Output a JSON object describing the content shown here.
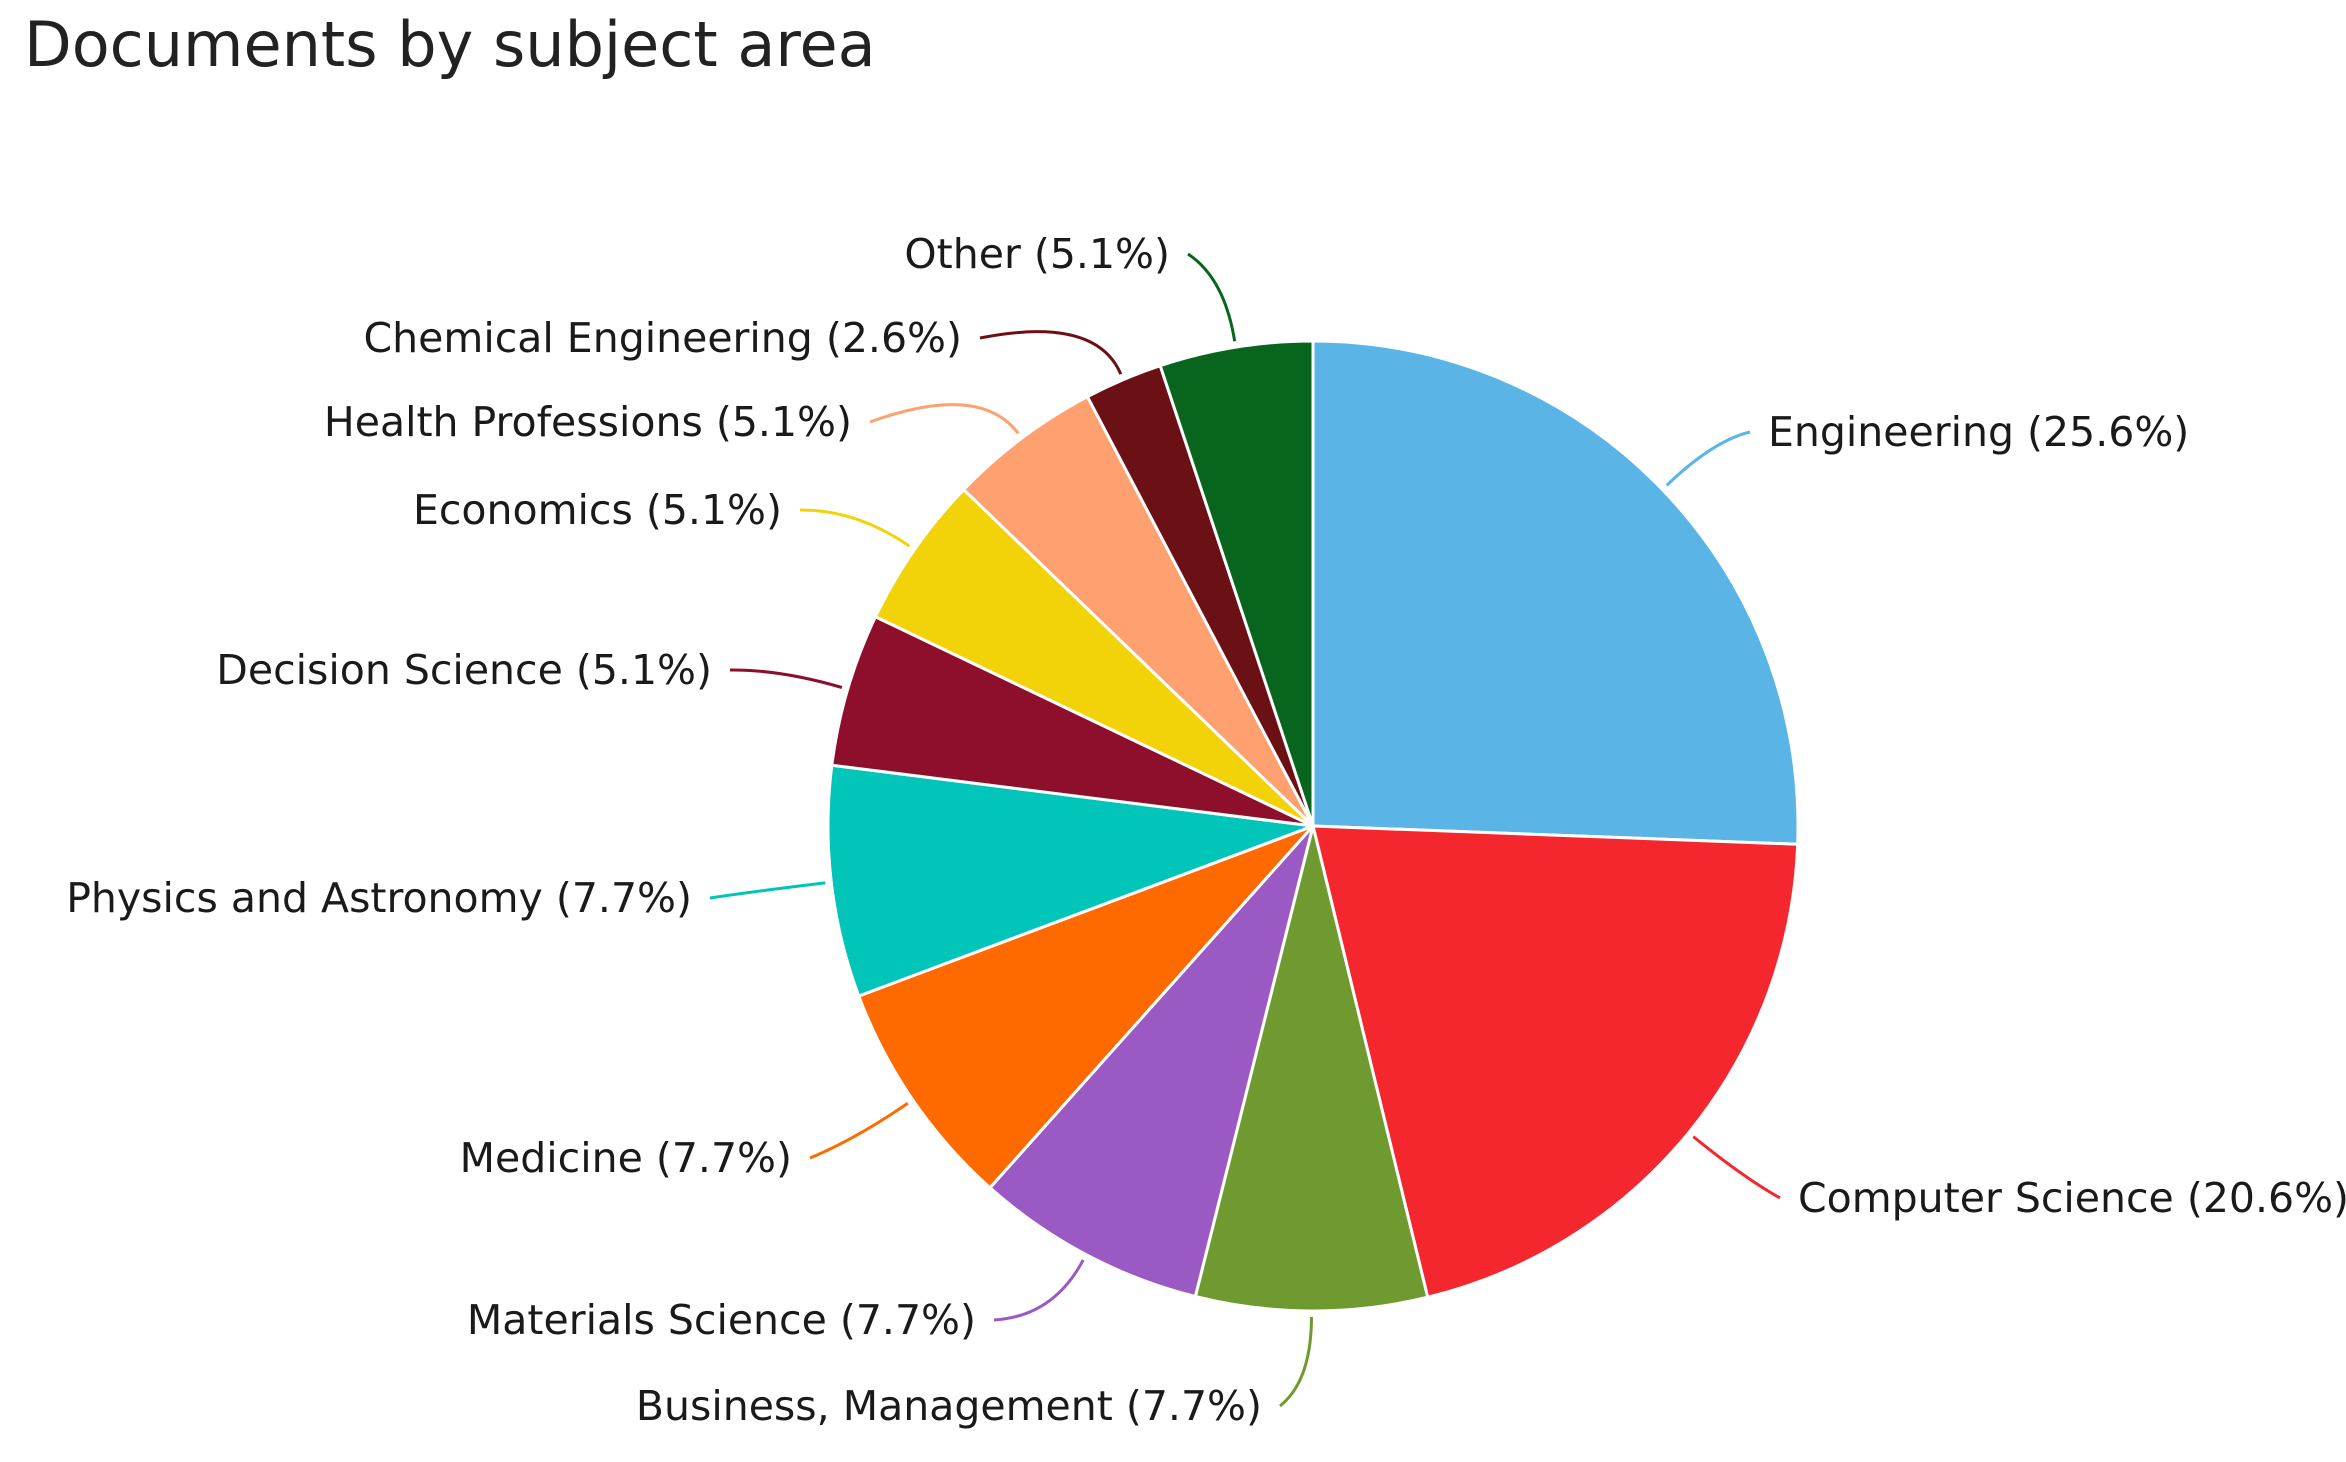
{
  "chart_data": {
    "type": "pie",
    "title": "Documents by subject area",
    "slices": [
      {
        "label": "Engineering",
        "value": 25.6,
        "display": "Engineering (25.6%)",
        "color": "#5ab4e6"
      },
      {
        "label": "Computer Science",
        "value": 20.6,
        "display": "Computer Science (20.6%)",
        "color": "#f4262e"
      },
      {
        "label": "Business, Management",
        "value": 7.7,
        "display": "Business, Management (7.7%)",
        "color": "#6f9a2f"
      },
      {
        "label": "Materials Science",
        "value": 7.7,
        "display": "Materials Science (7.7%)",
        "color": "#9b59c4"
      },
      {
        "label": "Medicine",
        "value": 7.7,
        "display": "Medicine (7.7%)",
        "color": "#ff6a00"
      },
      {
        "label": "Physics and Astronomy",
        "value": 7.7,
        "display": "Physics and Astronomy (7.7%)",
        "color": "#00c5b8"
      },
      {
        "label": "Decision Science",
        "value": 5.1,
        "display": "Decision Science (5.1%)",
        "color": "#8e0f2b"
      },
      {
        "label": "Economics",
        "value": 5.1,
        "display": "Economics (5.1%)",
        "color": "#f2d30a"
      },
      {
        "label": "Health Professions",
        "value": 5.1,
        "display": "Health Professions (5.1%)",
        "color": "#ffa070"
      },
      {
        "label": "Chemical Engineering",
        "value": 2.6,
        "display": "Chemical Engineering (2.6%)",
        "color": "#6b1116"
      },
      {
        "label": "Other",
        "value": 5.1,
        "display": "Other (5.1%)",
        "color": "#07651e"
      }
    ],
    "start": "12 o'clock",
    "direction": "clockwise"
  }
}
